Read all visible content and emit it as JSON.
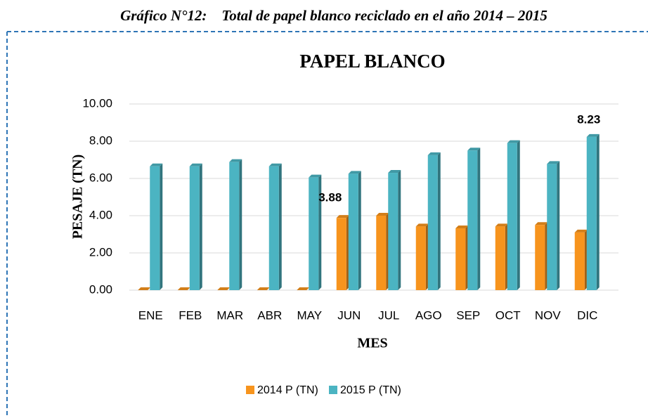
{
  "caption": "Gráfico N°12:    Total de papel blanco reciclado en el año 2014 – 2015",
  "chart_data": {
    "type": "bar",
    "title": "PAPEL BLANCO",
    "xlabel": "MES",
    "ylabel": "PESAJE (TN)",
    "categories": [
      "ENE",
      "FEB",
      "MAR",
      "ABR",
      "MAY",
      "JUN",
      "JUL",
      "AGO",
      "SEP",
      "OCT",
      "NOV",
      "DIC"
    ],
    "series": [
      {
        "name": "2014 P (TN)",
        "color": "#f7941d",
        "values": [
          0,
          0,
          0,
          0,
          0,
          3.88,
          4.0,
          3.42,
          3.32,
          3.42,
          3.5,
          3.1
        ],
        "value_labels": [
          null,
          null,
          null,
          null,
          null,
          "3.88",
          null,
          null,
          null,
          null,
          null,
          null
        ]
      },
      {
        "name": "2015 P (TN)",
        "color": "#4bb4c2",
        "values": [
          6.65,
          6.65,
          6.88,
          6.65,
          6.05,
          6.25,
          6.3,
          7.25,
          7.5,
          7.9,
          6.78,
          8.23
        ],
        "value_labels": [
          null,
          null,
          null,
          null,
          null,
          null,
          null,
          null,
          null,
          null,
          null,
          "8.23"
        ]
      }
    ],
    "ylim": [
      0,
      10
    ],
    "yticks": [
      {
        "value": 0,
        "label": "0.00"
      },
      {
        "value": 2,
        "label": "2.00"
      },
      {
        "value": 4,
        "label": "4.00"
      },
      {
        "value": 6,
        "label": "6.00"
      },
      {
        "value": 8,
        "label": "8.00"
      },
      {
        "value": 10,
        "label": "10.00"
      }
    ],
    "grid": true,
    "legend": "bottom"
  }
}
